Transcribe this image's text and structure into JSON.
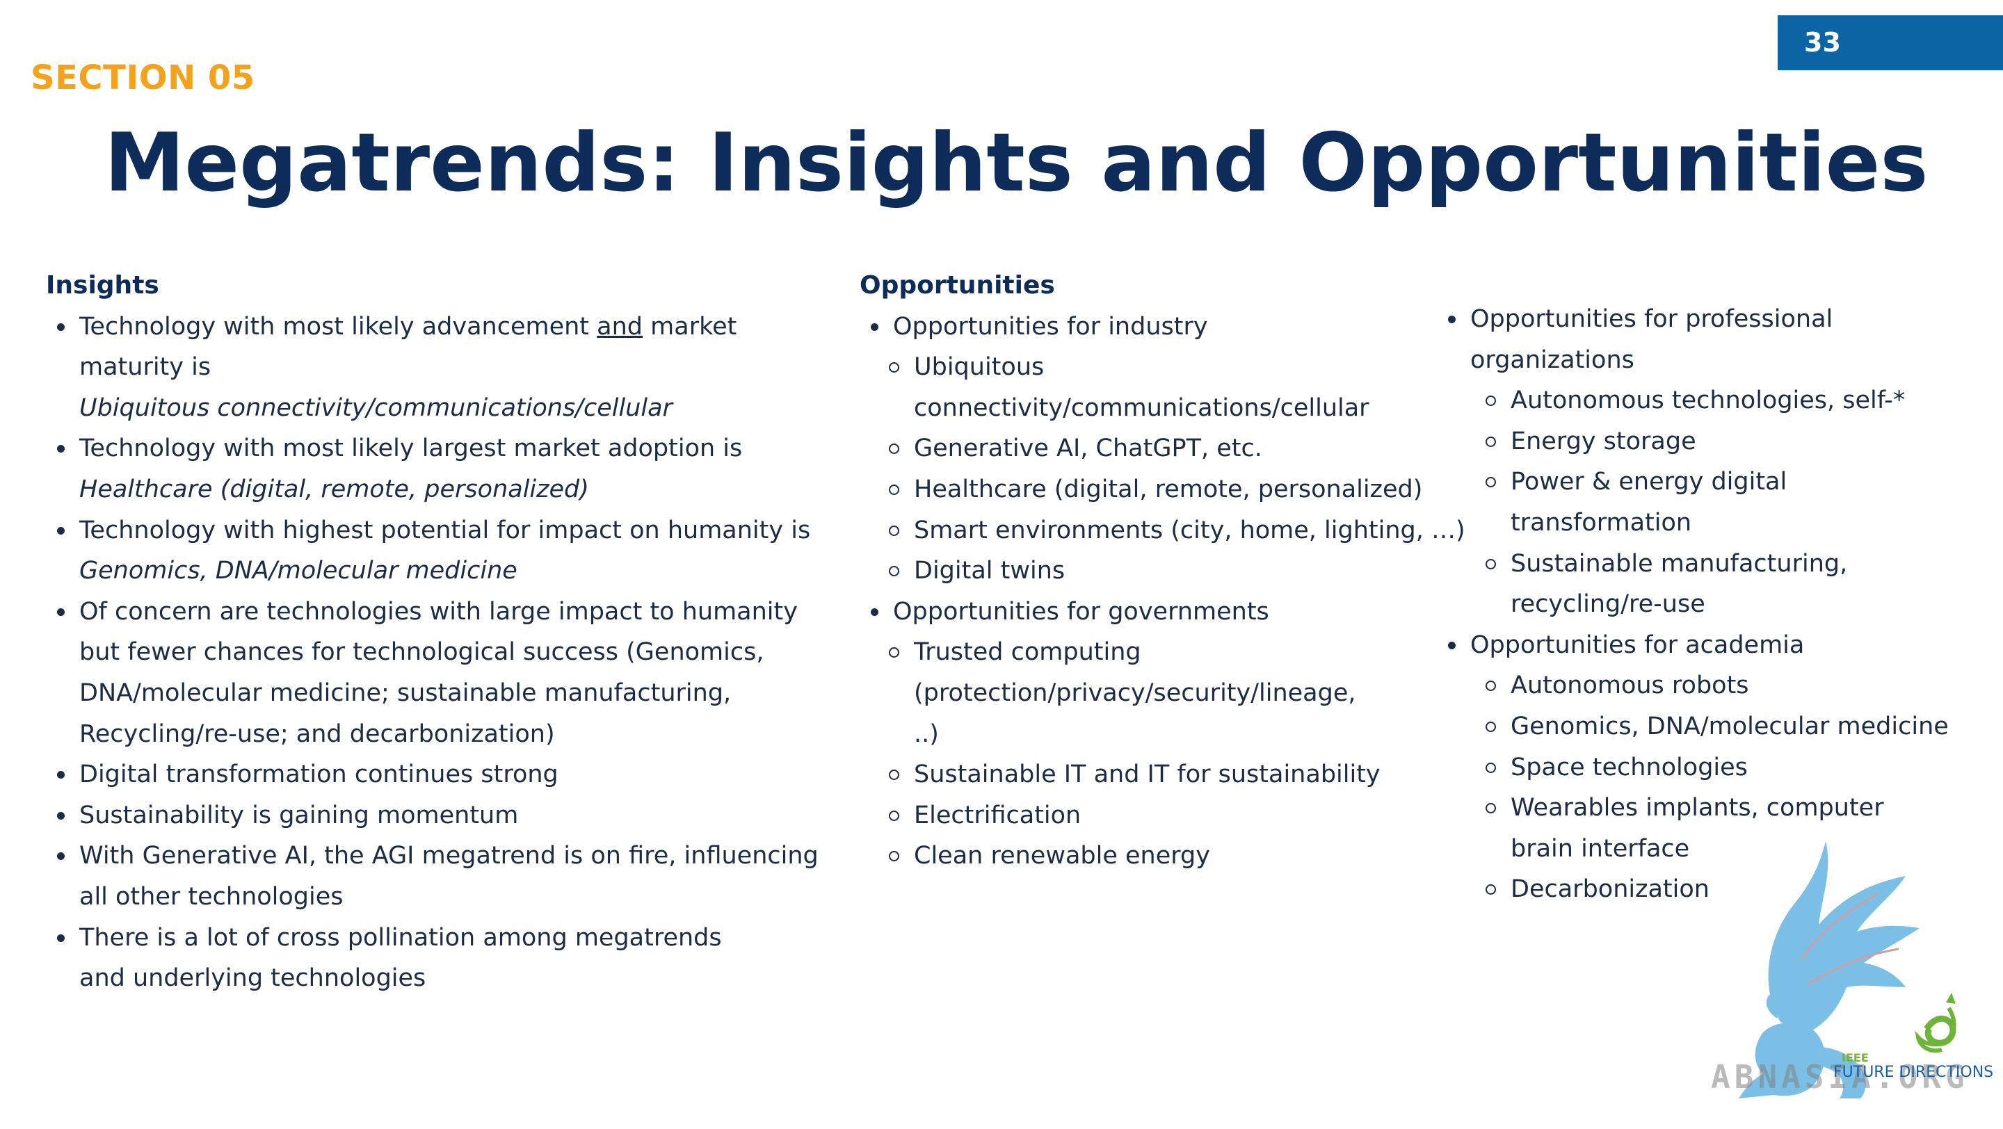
{
  "page_number": "33",
  "section_label": "SECTION 05",
  "title": "Megatrends: Insights and Opportunities",
  "insights": {
    "heading": "Insights",
    "items": [
      {
        "pre": "Technology with most likely advancement ",
        "underlined": "and",
        "post": " market maturity is ",
        "italic": "Ubiquitous connectivity/communications/cellular"
      },
      {
        "text": "Technology with most likely largest market adoption  is ",
        "italic": "Healthcare (digital, remote, personalized)"
      },
      {
        "text": "Technology with highest potential for impact on humanity is ",
        "italic": "Genomics, DNA/molecular medicine"
      },
      {
        "text": "Of concern are technologies with large impact to humanity but fewer chances for technological success (Genomics, DNA/molecular medicine; sustainable manufacturing, Recycling/re-use; and decarbonization)"
      },
      {
        "text": "Digital transformation continues strong"
      },
      {
        "text": "Sustainability is gaining momentum"
      },
      {
        "text": "With Generative AI, the AGI megatrend is on fire, influencing all other technologies"
      },
      {
        "text": "There is a lot of cross pollination among megatrends and underlying technologies"
      }
    ]
  },
  "opportunities": {
    "heading": "Opportunities",
    "industry": {
      "label": "Opportunities for industry",
      "items": [
        "Ubiquitous connectivity/communications/cellular",
        "Generative AI, ChatGPT, etc.",
        "Healthcare (digital, remote, personalized)",
        "Smart environments (city, home, lighting, …)",
        "Digital twins"
      ]
    },
    "governments": {
      "label": "Opportunities for governments",
      "items": [
        "Trusted computing (protection/privacy/security/lineage, ..)",
        "Sustainable IT and IT for sustainability",
        "Electrification",
        "Clean renewable energy"
      ]
    },
    "professional": {
      "label": "Opportunities for professional organizations",
      "items": [
        "Autonomous technologies, self-*",
        "Energy storage",
        "Power & energy digital transformation",
        "Sustainable manufacturing, recycling/re-use"
      ]
    },
    "academia": {
      "label": "Opportunities for academia",
      "items": [
        "Autonomous robots",
        "Genomics, DNA/molecular medicine",
        "Space technologies",
        "Wearables implants, computer brain interface",
        "Decarbonization"
      ]
    }
  },
  "logo": {
    "tag": "IEEE",
    "text": "FUTURE DIRECTIONS",
    "watermark": "ABNASIA.ORG",
    "colors": {
      "griffin": "#7bbfe6",
      "swirl": "#6fb43a",
      "text": "#1a5ea0"
    }
  },
  "colors": {
    "accent_orange": "#f2a21b",
    "title_navy": "#0d2c5a",
    "badge_blue": "#0b64a3"
  }
}
